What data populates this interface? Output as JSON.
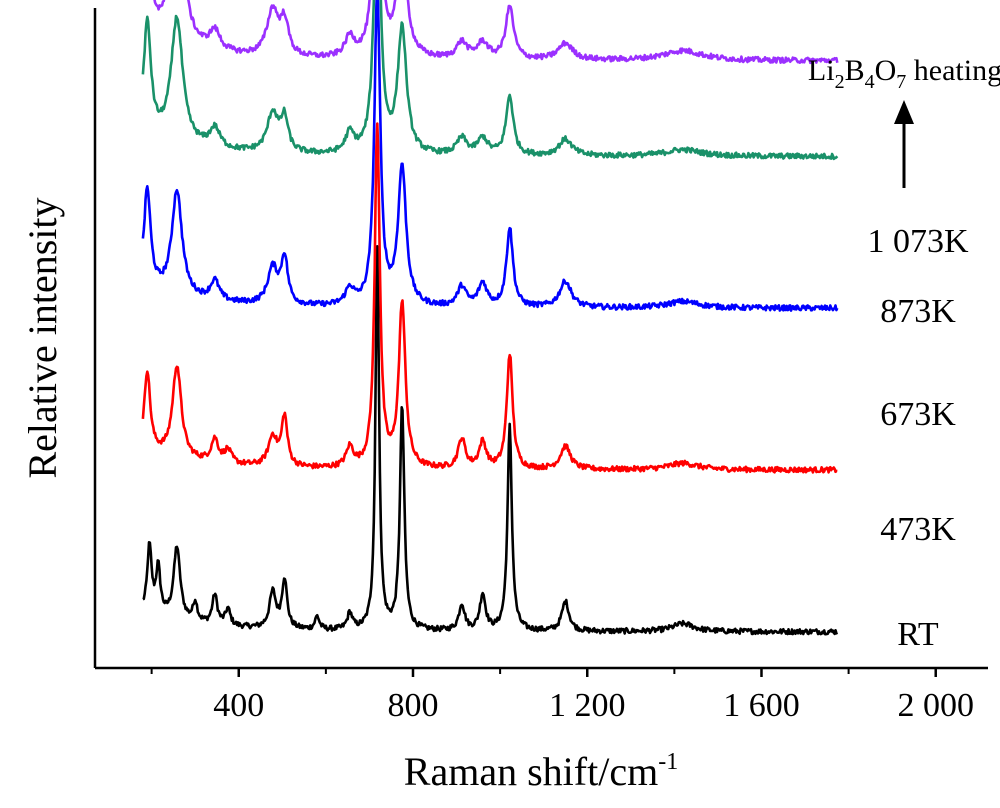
{
  "chart_data": {
    "type": "line",
    "xlabel": "Raman shift/cm",
    "xlabel_sup": "-1",
    "ylabel": "Relative intensity",
    "xlim": [
      70,
      2120
    ],
    "x_ticks": [
      400,
      800,
      1200,
      1600,
      2000
    ],
    "x_tick_labels": [
      "400",
      "800",
      "1 200",
      "1 600",
      "2 000"
    ],
    "y_ticks_shown": false,
    "grid": false,
    "annotation": {
      "text_parts": [
        {
          "t": "Li",
          "sub": false
        },
        {
          "t": "2",
          "sub": true
        },
        {
          "t": "B",
          "sub": false
        },
        {
          "t": "4",
          "sub": true
        },
        {
          "t": "O",
          "sub": false
        },
        {
          "t": "7",
          "sub": true
        },
        {
          "t": "  heating",
          "sub": false
        }
      ],
      "arrow": "up"
    },
    "peak_positions_cm-1": [
      195,
      215,
      258,
      300,
      345,
      375,
      478,
      505,
      580,
      655,
      718,
      775,
      912,
      960,
      1022,
      1150,
      1420
    ],
    "series": [
      {
        "name": "RT",
        "color": "#000000",
        "baseline": 0.055,
        "peaks": [
          [
            195,
            0.1,
            6
          ],
          [
            215,
            0.07,
            6
          ],
          [
            258,
            0.11,
            9
          ],
          [
            300,
            0.03,
            6
          ],
          [
            345,
            0.045,
            7
          ],
          [
            375,
            0.025,
            7
          ],
          [
            478,
            0.055,
            9
          ],
          [
            505,
            0.075,
            7
          ],
          [
            580,
            0.02,
            6
          ],
          [
            655,
            0.025,
            7
          ],
          [
            718,
            0.58,
            5
          ],
          [
            775,
            0.34,
            6
          ],
          [
            912,
            0.04,
            8
          ],
          [
            960,
            0.055,
            8
          ],
          [
            1022,
            0.31,
            6
          ],
          [
            1150,
            0.045,
            10
          ],
          [
            1420,
            0.012,
            30
          ]
        ]
      },
      {
        "name": "473K",
        "color": "#ff0000",
        "baseline": 0.3,
        "peaks": [
          [
            190,
            0.12,
            8
          ],
          [
            258,
            0.14,
            12
          ],
          [
            345,
            0.035,
            10
          ],
          [
            375,
            0.02,
            10
          ],
          [
            478,
            0.045,
            12
          ],
          [
            505,
            0.075,
            8
          ],
          [
            655,
            0.03,
            10
          ],
          [
            718,
            0.52,
            7
          ],
          [
            775,
            0.25,
            9
          ],
          [
            912,
            0.045,
            10
          ],
          [
            960,
            0.04,
            10
          ],
          [
            1022,
            0.175,
            8
          ],
          [
            1150,
            0.035,
            14
          ],
          [
            1420,
            0.01,
            40
          ]
        ]
      },
      {
        "name": "673K",
        "color": "#0000ff",
        "baseline": 0.545,
        "peaks": [
          [
            190,
            0.15,
            9
          ],
          [
            258,
            0.16,
            14
          ],
          [
            345,
            0.03,
            12
          ],
          [
            478,
            0.055,
            14
          ],
          [
            505,
            0.07,
            9
          ],
          [
            655,
            0.025,
            12
          ],
          [
            718,
            0.48,
            8
          ],
          [
            775,
            0.21,
            11
          ],
          [
            912,
            0.03,
            12
          ],
          [
            960,
            0.035,
            12
          ],
          [
            1022,
            0.12,
            9
          ],
          [
            1150,
            0.04,
            16
          ],
          [
            1420,
            0.01,
            45
          ]
        ]
      },
      {
        "name": "873K",
        "color": "#1a9169",
        "baseline": 0.775,
        "peaks": [
          [
            190,
            0.17,
            10
          ],
          [
            258,
            0.19,
            16
          ],
          [
            345,
            0.03,
            14
          ],
          [
            478,
            0.06,
            15
          ],
          [
            505,
            0.05,
            10
          ],
          [
            655,
            0.03,
            12
          ],
          [
            718,
            0.41,
            9
          ],
          [
            775,
            0.19,
            12
          ],
          [
            912,
            0.025,
            14
          ],
          [
            960,
            0.025,
            14
          ],
          [
            1022,
            0.09,
            10
          ],
          [
            1150,
            0.025,
            18
          ],
          [
            1420,
            0.01,
            50
          ]
        ]
      },
      {
        "name": "1 073K",
        "color": "#9b30ff",
        "baseline": 0.92,
        "peaks": [
          [
            190,
            0.17,
            10
          ],
          [
            258,
            0.22,
            18
          ],
          [
            345,
            0.03,
            15
          ],
          [
            478,
            0.07,
            16
          ],
          [
            505,
            0.05,
            11
          ],
          [
            655,
            0.03,
            13
          ],
          [
            718,
            0.33,
            10
          ],
          [
            775,
            0.17,
            13
          ],
          [
            912,
            0.025,
            15
          ],
          [
            960,
            0.025,
            15
          ],
          [
            1022,
            0.08,
            11
          ],
          [
            1150,
            0.025,
            20
          ],
          [
            1420,
            0.015,
            55
          ]
        ]
      }
    ]
  }
}
